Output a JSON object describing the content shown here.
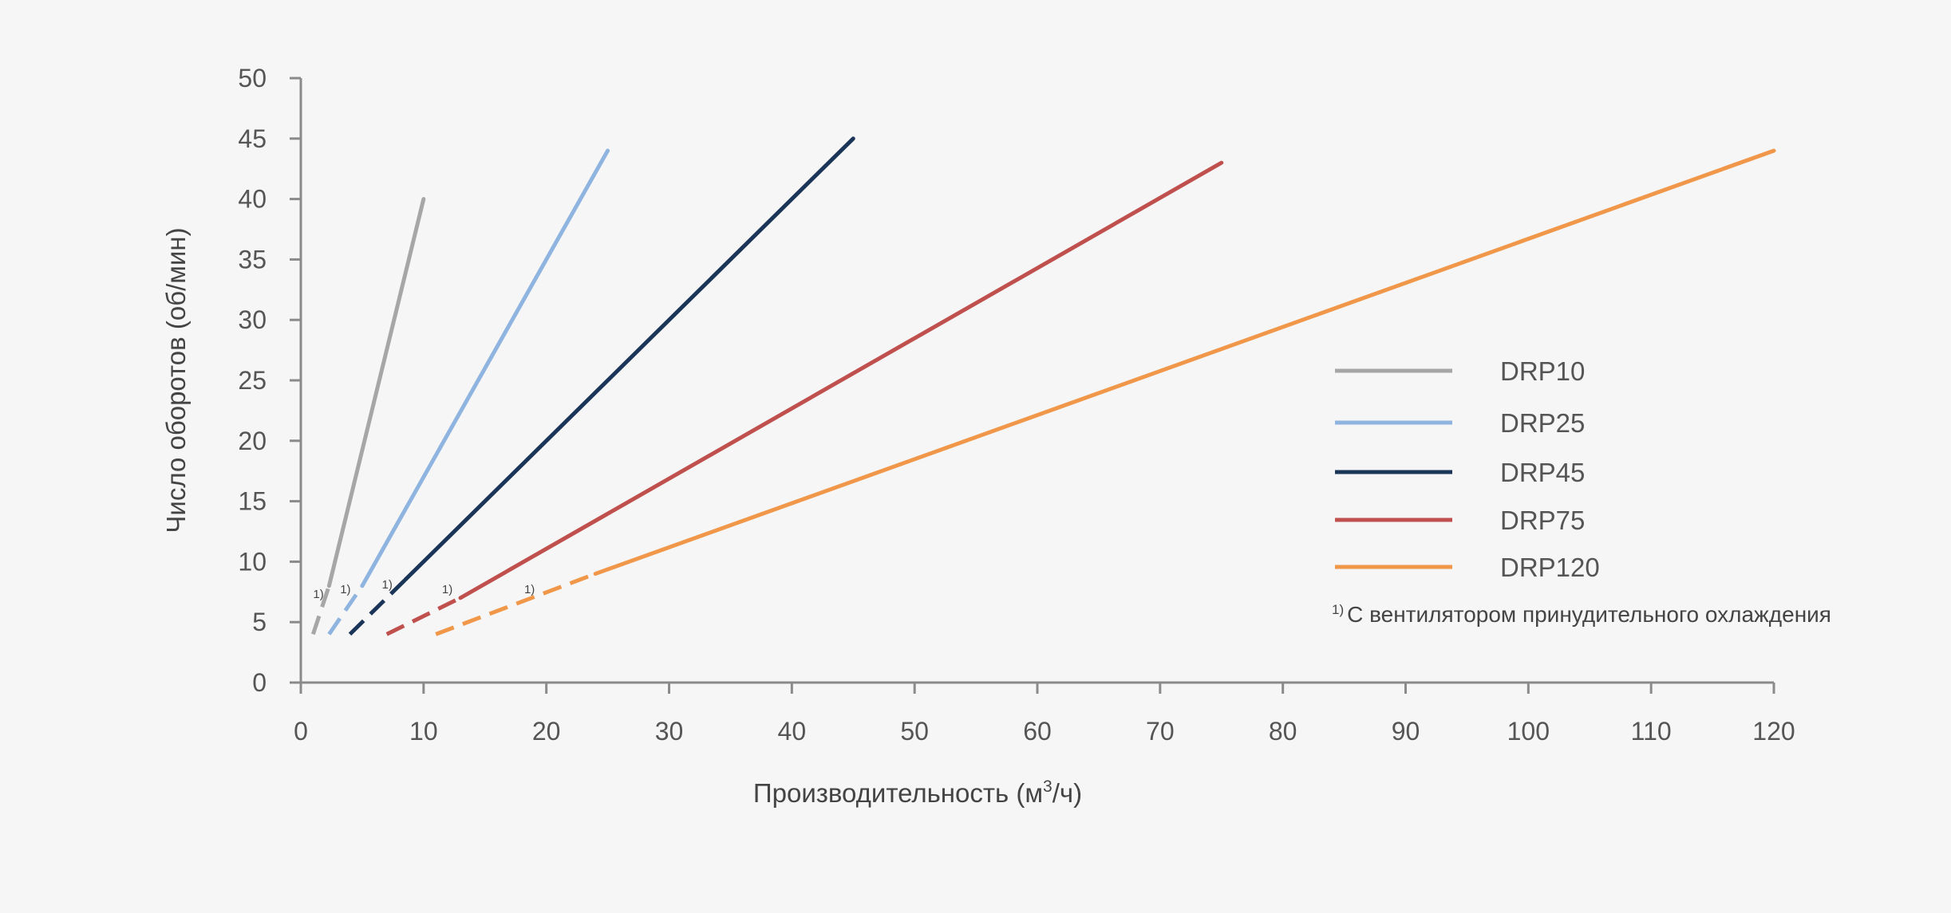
{
  "chart_data": {
    "type": "line",
    "title": "",
    "xlabel": "Производительность (м³/ч)",
    "xlabel_parts": {
      "main": "Производительность (м",
      "sup": "3",
      "tail": "/ч)"
    },
    "ylabel": "Число оборотов (об/мин)",
    "xlim": [
      0,
      120
    ],
    "ylim": [
      0,
      50
    ],
    "x_ticks": [
      0,
      10,
      20,
      30,
      40,
      50,
      60,
      70,
      80,
      90,
      100,
      110,
      120
    ],
    "y_ticks": [
      0,
      5,
      10,
      15,
      20,
      25,
      30,
      35,
      40,
      45,
      50
    ],
    "grid": false,
    "legend_position": "right",
    "series": [
      {
        "name": "DRP10",
        "color": "#a6a6a6",
        "dashed": [
          [
            1.0,
            4.0
          ],
          [
            2.3,
            8.0
          ]
        ],
        "solid": [
          [
            2.3,
            8.0
          ],
          [
            10.0,
            40.0
          ]
        ],
        "marker": "1)",
        "marker_at": [
          1.0,
          7.0
        ]
      },
      {
        "name": "DRP25",
        "color": "#8fb4e0",
        "dashed": [
          [
            2.3,
            4.0
          ],
          [
            5.0,
            8.0
          ]
        ],
        "solid": [
          [
            5.0,
            8.0
          ],
          [
            25.0,
            44.0
          ]
        ],
        "marker": "1)",
        "marker_at": [
          3.2,
          7.4
        ]
      },
      {
        "name": "DRP45",
        "color": "#1b3558",
        "dashed": [
          [
            4.0,
            4.0
          ],
          [
            8.5,
            8.5
          ]
        ],
        "solid": [
          [
            8.5,
            8.5
          ],
          [
            45.0,
            45.0
          ]
        ],
        "marker": "1)",
        "marker_at": [
          6.6,
          7.8
        ]
      },
      {
        "name": "DRP75",
        "color": "#c0504d",
        "dashed": [
          [
            7.0,
            4.0
          ],
          [
            13.0,
            7.0
          ]
        ],
        "solid": [
          [
            13.0,
            7.0
          ],
          [
            75.0,
            43.0
          ]
        ],
        "marker": "1)",
        "marker_at": [
          11.5,
          7.4
        ]
      },
      {
        "name": "DRP120",
        "color": "#f0974a",
        "dashed": [
          [
            11.0,
            4.0
          ],
          [
            24.0,
            9.0
          ]
        ],
        "solid": [
          [
            24.0,
            9.0
          ],
          [
            120.0,
            44.0
          ]
        ],
        "marker": "1)",
        "marker_at": [
          18.2,
          7.4
        ]
      }
    ],
    "footnote": {
      "marker": "1)",
      "text": "С вентилятором принудительного охлаждения"
    }
  }
}
